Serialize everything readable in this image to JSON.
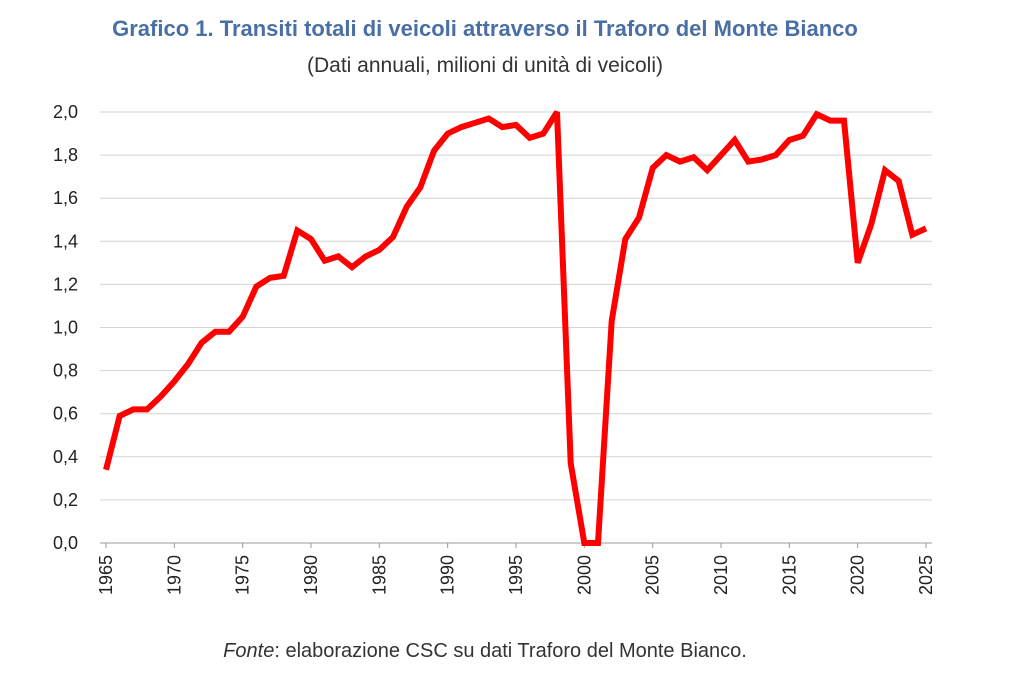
{
  "chart_data": {
    "type": "line",
    "title": "Grafico 1. Transiti totali di veicoli attraverso il Traforo del Monte Bianco",
    "subtitle": "(Dati annuali, milioni di unità di veicoli)",
    "xlabel": "",
    "ylabel": "",
    "ylim": [
      0,
      2.0
    ],
    "xlim": [
      1965,
      2025
    ],
    "y_ticks": [
      "0,0",
      "0,2",
      "0,4",
      "0,6",
      "0,8",
      "1,0",
      "1,2",
      "1,4",
      "1,6",
      "1,8",
      "2,0"
    ],
    "x_ticks": [
      "1965",
      "1970",
      "1975",
      "1980",
      "1985",
      "1990",
      "1995",
      "2000",
      "2005",
      "2010",
      "2015",
      "2020",
      "2025"
    ],
    "grid": "horizontal",
    "line_color": "#ff0000",
    "series": [
      {
        "x": [
          1965,
          1966,
          1967,
          1968,
          1969,
          1970,
          1971,
          1972,
          1973,
          1974,
          1975,
          1976,
          1977,
          1978,
          1979,
          1980,
          1981,
          1982,
          1983,
          1984,
          1985,
          1986,
          1987,
          1988,
          1989,
          1990,
          1991,
          1992,
          1993,
          1994,
          1995,
          1996,
          1997,
          1998,
          1999,
          2000,
          2001,
          2002,
          2003,
          2004,
          2005,
          2006,
          2007,
          2008,
          2009,
          2010,
          2011,
          2012,
          2013,
          2014,
          2015,
          2016,
          2017,
          2018,
          2019,
          2020,
          2021,
          2022,
          2023,
          2024,
          2025
        ],
        "values": [
          0.34,
          0.59,
          0.62,
          0.62,
          0.68,
          0.75,
          0.83,
          0.93,
          0.98,
          0.98,
          1.05,
          1.19,
          1.23,
          1.24,
          1.45,
          1.41,
          1.31,
          1.33,
          1.28,
          1.33,
          1.36,
          1.42,
          1.56,
          1.65,
          1.82,
          1.9,
          1.93,
          1.95,
          1.97,
          1.93,
          1.94,
          1.88,
          1.9,
          2.0,
          0.37,
          0.0,
          0.0,
          1.03,
          1.41,
          1.51,
          1.74,
          1.8,
          1.77,
          1.79,
          1.73,
          1.8,
          1.87,
          1.77,
          1.78,
          1.8,
          1.87,
          1.89,
          1.99,
          1.96,
          1.96,
          1.3,
          1.48,
          1.73,
          1.68,
          1.43,
          1.46
        ]
      }
    ]
  },
  "source": {
    "prefix": "Fonte",
    "text": ": elaborazione CSC su dati Traforo del Monte Bianco."
  }
}
